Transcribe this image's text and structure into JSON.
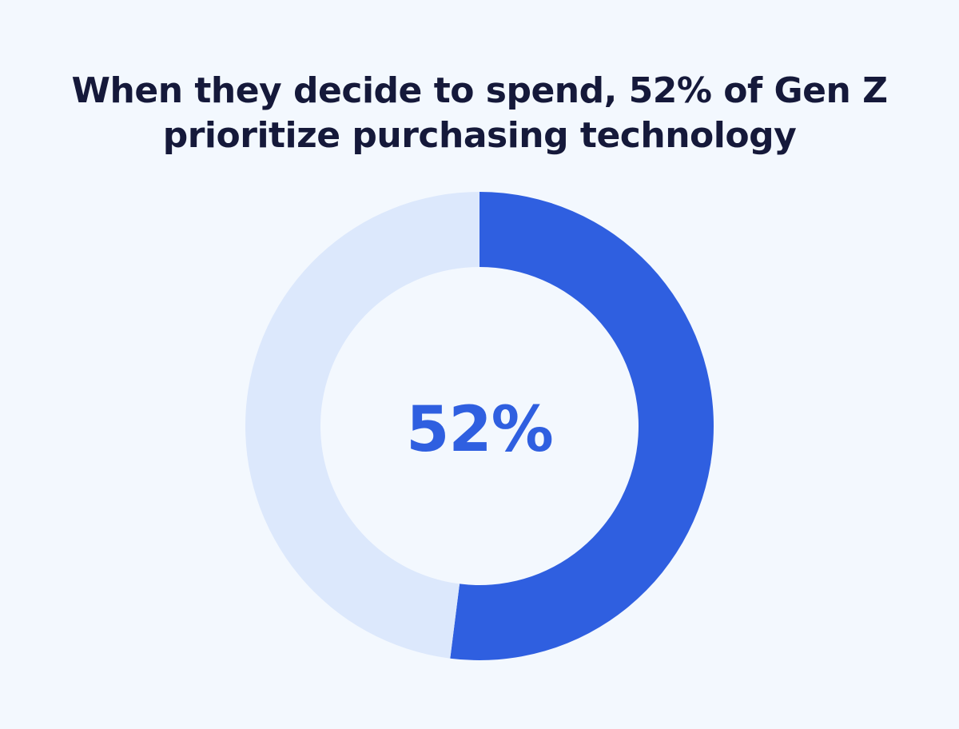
{
  "title": {
    "line1": "When they decide to spend, 52% of Gen Z",
    "line2": "prioritize purchasing technology"
  },
  "center_label": "52%",
  "colors": {
    "background": "#f3f8fe",
    "primary": "#2f5fe0",
    "remainder": "#dce8fc",
    "title": "#15193a"
  },
  "chart_data": {
    "type": "pie",
    "title": "When they decide to spend, 52% of Gen Z prioritize purchasing technology",
    "values": [
      52,
      48
    ],
    "unit": "%",
    "center_label": "52%"
  }
}
